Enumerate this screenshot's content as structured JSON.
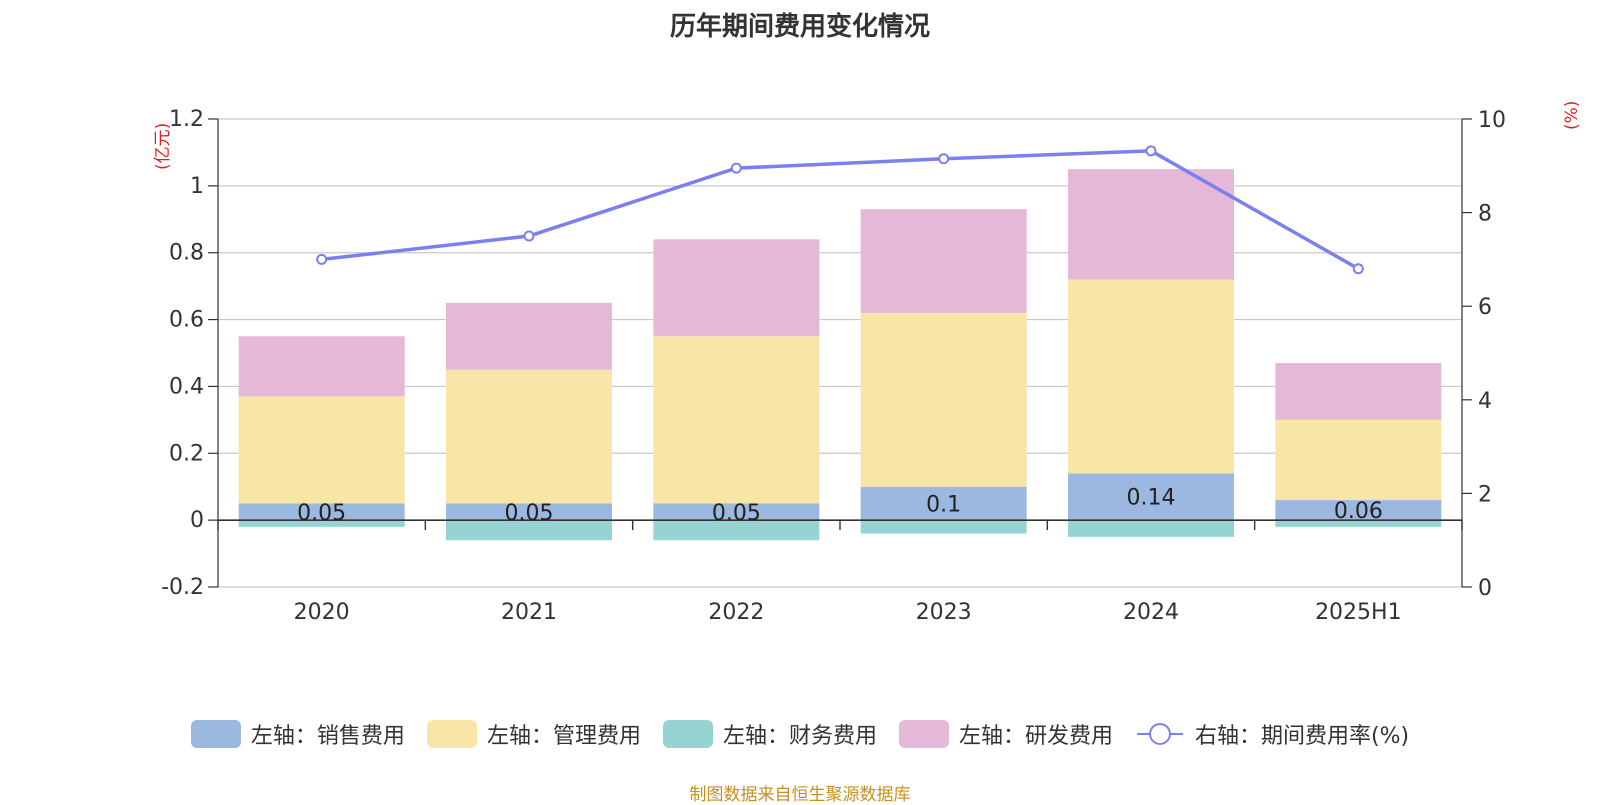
{
  "title": "历年期间费用变化情况",
  "left_unit": "(亿元)",
  "right_unit": "(%)",
  "source": "制图数据来自恒生聚源数据库",
  "colors": {
    "sales": "#9bb8e0",
    "admin": "#f8e6a6",
    "finance": "#96d4d4",
    "rd": "#e6b8d8",
    "rate": "#7b80ee",
    "unit_text": "#e02020",
    "source_text": "#c8901e"
  },
  "legend": [
    {
      "label": "左轴：销售费用",
      "key": "sales",
      "kind": "bar"
    },
    {
      "label": "左轴：管理费用",
      "key": "admin",
      "kind": "bar"
    },
    {
      "label": "左轴：财务费用",
      "key": "finance",
      "kind": "bar"
    },
    {
      "label": "左轴：研发费用",
      "key": "rd",
      "kind": "bar"
    },
    {
      "label": "右轴：期间费用率(%)",
      "key": "rate",
      "kind": "line"
    }
  ],
  "chart_data": {
    "type": "bar",
    "stacked": true,
    "categories": [
      "2020",
      "2021",
      "2022",
      "2023",
      "2024",
      "2025H1"
    ],
    "series": [
      {
        "name": "左轴：销售费用",
        "key": "sales",
        "axis": "left",
        "values": [
          0.05,
          0.05,
          0.05,
          0.1,
          0.14,
          0.06
        ],
        "labels": [
          "0.05",
          "0.05",
          "0.05",
          "0.1",
          "0.14",
          "0.06"
        ]
      },
      {
        "name": "左轴：管理费用",
        "key": "admin",
        "axis": "left",
        "values": [
          0.32,
          0.4,
          0.5,
          0.52,
          0.58,
          0.24
        ]
      },
      {
        "name": "左轴：财务费用",
        "key": "finance",
        "axis": "left",
        "values": [
          -0.02,
          -0.06,
          -0.06,
          -0.04,
          -0.05,
          -0.02
        ]
      },
      {
        "name": "左轴：研发费用",
        "key": "rd",
        "axis": "left",
        "values": [
          0.18,
          0.2,
          0.29,
          0.31,
          0.33,
          0.17
        ]
      },
      {
        "name": "右轴：期间费用率(%)",
        "key": "rate",
        "axis": "right",
        "type": "line",
        "values": [
          7.0,
          7.5,
          8.95,
          9.15,
          9.32,
          6.8
        ]
      }
    ],
    "left_axis": {
      "min": -0.2,
      "max": 1.2,
      "ticks": [
        "1.2",
        "1",
        "0.8",
        "0.6",
        "0.4",
        "0.2",
        "0",
        "-0.2"
      ],
      "tick_values": [
        1.2,
        1,
        0.8,
        0.6,
        0.4,
        0.2,
        0,
        -0.2
      ]
    },
    "right_axis": {
      "min": 0,
      "max": 10,
      "ticks": [
        "10",
        "8",
        "6",
        "4",
        "2",
        "0"
      ],
      "tick_values": [
        10,
        8,
        6,
        4,
        2,
        0
      ]
    },
    "grid": true
  }
}
